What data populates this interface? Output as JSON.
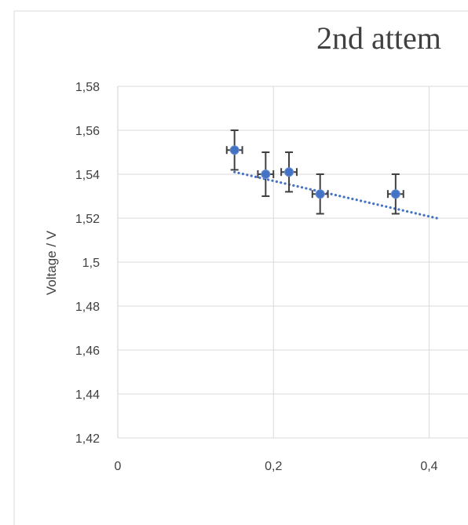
{
  "chart_data": {
    "type": "scatter",
    "title": "2nd attem",
    "xlabel": "",
    "ylabel": "Voltage / V",
    "xlim": [
      0,
      0.45
    ],
    "ylim": [
      1.42,
      1.58
    ],
    "x_ticks": [
      0,
      0.2,
      0.4
    ],
    "x_tick_labels": [
      "0",
      "0,2",
      "0,4"
    ],
    "y_ticks": [
      1.42,
      1.44,
      1.46,
      1.48,
      1.5,
      1.52,
      1.54,
      1.56,
      1.58
    ],
    "y_tick_labels": [
      "1,42",
      "1,44",
      "1,46",
      "1,48",
      "1,5",
      "1,52",
      "1,54",
      "1,56",
      "1,58"
    ],
    "grid": true,
    "points": [
      {
        "x": 0.15,
        "y": 1.551,
        "x_err": 0.01,
        "y_err": 0.009
      },
      {
        "x": 0.19,
        "y": 1.54,
        "x_err": 0.01,
        "y_err": 0.01
      },
      {
        "x": 0.22,
        "y": 1.541,
        "x_err": 0.01,
        "y_err": 0.009
      },
      {
        "x": 0.26,
        "y": 1.531,
        "x_err": 0.01,
        "y_err": 0.009
      },
      {
        "x": 0.357,
        "y": 1.531,
        "x_err": 0.01,
        "y_err": 0.009
      }
    ],
    "trendline": {
      "style": "dotted",
      "x": [
        0.15,
        0.41
      ],
      "y": [
        1.541,
        1.52
      ]
    },
    "colors": {
      "marker": "#4472c4",
      "trendline": "#4472c4",
      "error_bar": "#404040",
      "grid": "#d9d9d9",
      "text": "#404040",
      "frame": "#d9d9d9"
    }
  }
}
